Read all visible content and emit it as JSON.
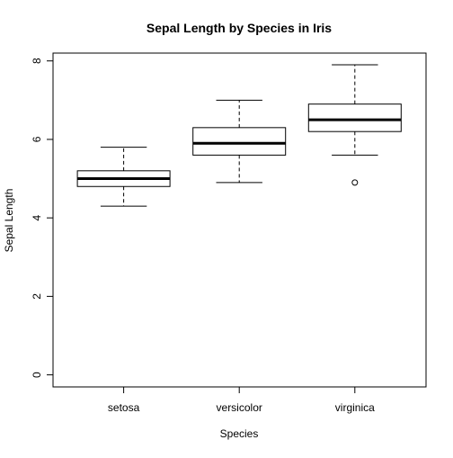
{
  "chart_data": {
    "type": "box",
    "title": "Sepal Length by Species in Iris",
    "xlabel": "Species",
    "ylabel": "Sepal Length",
    "ylim": [
      0,
      8
    ],
    "yticks": [
      0,
      2,
      4,
      6,
      8
    ],
    "grid": false,
    "categories": [
      "setosa",
      "versicolor",
      "virginica"
    ],
    "boxes": [
      {
        "category": "setosa",
        "whisker_low": 4.3,
        "q1": 4.8,
        "median": 5.0,
        "q3": 5.2,
        "whisker_high": 5.8,
        "outliers": []
      },
      {
        "category": "versicolor",
        "whisker_low": 4.9,
        "q1": 5.6,
        "median": 5.9,
        "q3": 6.3,
        "whisker_high": 7.0,
        "outliers": []
      },
      {
        "category": "virginica",
        "whisker_low": 5.6,
        "q1": 6.2,
        "median": 6.5,
        "q3": 6.9,
        "whisker_high": 7.9,
        "outliers": [
          4.9
        ]
      }
    ]
  }
}
